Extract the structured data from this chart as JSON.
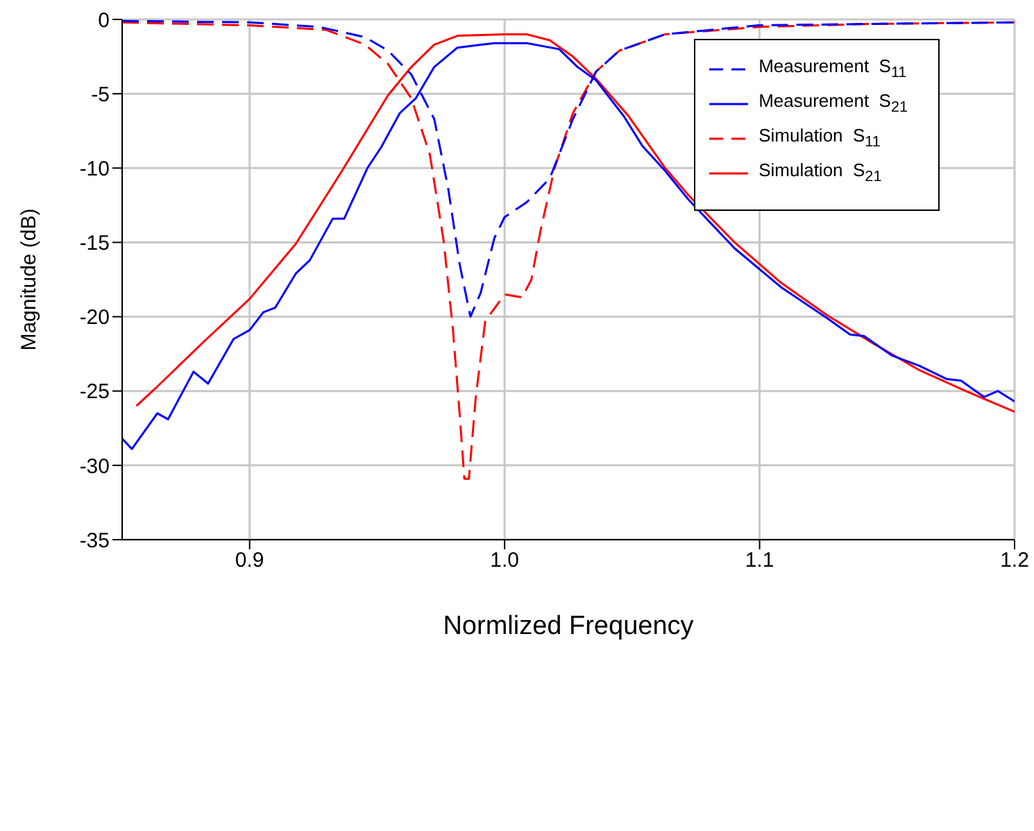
{
  "chart_data": {
    "type": "line",
    "xlabel": "Normlized Frequency",
    "ylabel": "Magnitude  (dB)",
    "xlim": [
      0.85,
      1.2
    ],
    "xticks": [
      0.9,
      {
        "value": 1,
        "label": "1.0"
      },
      1.1,
      1.2
    ],
    "ylim": [
      -35,
      0
    ],
    "yticks": [
      0,
      -5,
      -10,
      -15,
      -20,
      -25,
      -30,
      -35
    ],
    "grid": true,
    "legend": "top right",
    "marker": "none",
    "series": [
      {
        "name": "Measurement  S$_{11}$",
        "color": "#0000ff",
        "line_style": "dashed",
        "x": [
          0.85,
          0.9,
          0.9272,
          0.9453,
          0.9543,
          0.9634,
          0.9724,
          0.9779,
          0.9824,
          0.9866,
          0.9906,
          0.996,
          1.0,
          1.0087,
          1.0177,
          1.0268,
          1.0359,
          1.045,
          1.063,
          1.0993,
          1.1446,
          1.2
        ],
        "values": [
          -0.1,
          -0.2,
          -0.5,
          -1.2,
          -2.1,
          -3.7,
          -6.7,
          -11.4,
          -16.5,
          -20.0,
          -18.4,
          -14.7,
          -13.3,
          -12.3,
          -10.7,
          -6.7,
          -3.5,
          -2.1,
          -1.0,
          -0.4,
          -0.3,
          -0.2
        ]
      },
      {
        "name": "Measurement  S$_{21}$",
        "color": "#0000ff",
        "line_style": "solid",
        "x": [
          0.85,
          0.8538,
          0.8638,
          0.868,
          0.878,
          0.8837,
          0.8937,
          0.9,
          0.9054,
          0.91,
          0.9181,
          0.9236,
          0.9326,
          0.9371,
          0.9462,
          0.9516,
          0.9589,
          0.9652,
          0.9724,
          0.9815,
          0.9906,
          0.996,
          1.0,
          1.0087,
          1.0214,
          1.0286,
          1.0359,
          1.0467,
          1.054,
          1.063,
          1.072,
          1.0902,
          1.1083,
          1.1265,
          1.1355,
          1.141,
          1.1518,
          1.1627,
          1.1735,
          1.179,
          1.188,
          1.1935,
          1.2
        ],
        "values": [
          -28.2,
          -28.9,
          -26.5,
          -26.9,
          -23.7,
          -24.5,
          -21.5,
          -20.9,
          -19.7,
          -19.4,
          -17.1,
          -16.2,
          -13.4,
          -13.4,
          -10.0,
          -8.6,
          -6.3,
          -5.3,
          -3.2,
          -1.9,
          -1.7,
          -1.6,
          -1.6,
          -1.6,
          -2.0,
          -3.2,
          -4.1,
          -6.5,
          -8.5,
          -10.2,
          -12.1,
          -15.4,
          -18.0,
          -20.1,
          -21.2,
          -21.3,
          -22.6,
          -23.3,
          -24.2,
          -24.3,
          -25.4,
          -25.0,
          -25.7
        ]
      },
      {
        "name": "Simulation  S$_{11}$",
        "color": "#ff0000",
        "line_style": "dashed",
        "x": [
          0.85,
          0.9,
          0.93,
          0.9453,
          0.9543,
          0.9634,
          0.9707,
          0.9761,
          0.9797,
          0.9824,
          0.9842,
          0.986,
          0.9887,
          0.9924,
          1.0,
          1.0069,
          1.0105,
          1.0141,
          1.0196,
          1.0268,
          1.0359,
          1.045,
          1.063,
          1.1,
          1.145,
          1.2
        ],
        "values": [
          -0.2,
          -0.4,
          -0.7,
          -1.7,
          -3.0,
          -5.3,
          -9.1,
          -14.9,
          -20.8,
          -26.6,
          -30.9,
          -30.9,
          -25.4,
          -20.3,
          -18.5,
          -18.7,
          -17.5,
          -14.2,
          -10.0,
          -6.3,
          -3.5,
          -2.1,
          -1.0,
          -0.5,
          -0.3,
          -0.2
        ]
      },
      {
        "name": "Simulation  S$_{21}$",
        "color": "#ff0000",
        "line_style": "solid",
        "x": [
          0.8556,
          0.8638,
          0.8819,
          0.9,
          0.9181,
          0.9362,
          0.9543,
          0.9634,
          0.9724,
          0.9815,
          1.0,
          1.0087,
          1.0177,
          1.0268,
          1.0359,
          1.0486,
          1.063,
          1.072,
          1.0902,
          1.1083,
          1.1265,
          1.1446,
          1.1627,
          1.1808,
          1.2
        ],
        "values": [
          -26.0,
          -24.7,
          -21.7,
          -18.8,
          -15.1,
          -10.2,
          -5.1,
          -3.2,
          -1.7,
          -1.1,
          -1.0,
          -1.0,
          -1.4,
          -2.5,
          -4.0,
          -6.5,
          -10.0,
          -11.8,
          -15.0,
          -17.7,
          -19.9,
          -21.8,
          -23.6,
          -25.0,
          -26.4
        ]
      }
    ]
  }
}
